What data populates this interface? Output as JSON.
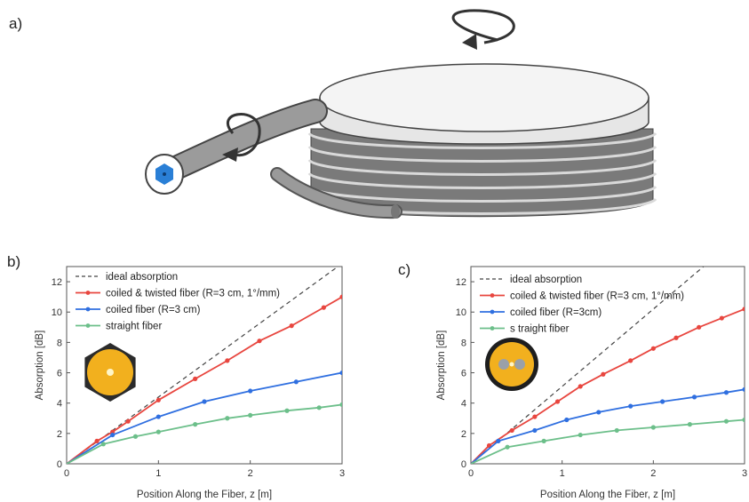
{
  "panels": {
    "a": "a)",
    "b": "b)",
    "c": "c)"
  },
  "colors": {
    "ideal": "#444444",
    "twisted": "#e8463f",
    "coiled": "#2f6fe0",
    "straight": "#6cbf8a",
    "fiber_core": "#2a7fd6",
    "fiber_gray": "#8a8a8a",
    "hex_outer": "#2b2b2b",
    "hex_cladding": "#f2b01e"
  },
  "illustration": {
    "description_icon": "coiled-twisted-fiber-spool"
  },
  "chart_data": [
    {
      "type": "line",
      "xlabel": "Position Along the Fiber, z [m]",
      "ylabel": "Absorption [dB]",
      "xlim": [
        0,
        3
      ],
      "ylim": [
        0,
        13
      ],
      "xticks": [
        "0",
        "1",
        "2",
        "3"
      ],
      "yticks": [
        "0",
        "2",
        "4",
        "6",
        "8",
        "10",
        "12"
      ],
      "legend_position": "top-left",
      "inset_icon": "hexagonal-fiber-icon",
      "series": [
        {
          "name": "ideal absorption",
          "color": "#444444",
          "dashed": true,
          "x": [
            0,
            3
          ],
          "y": [
            0,
            13.2
          ]
        },
        {
          "name": "coiled & twisted fiber (R=3 cm, 1°/mm)",
          "color": "#e8463f",
          "dashed": false,
          "x": [
            0,
            0.33,
            0.5,
            0.67,
            1.0,
            1.4,
            1.75,
            2.1,
            2.45,
            2.8,
            3.0
          ],
          "y": [
            0,
            1.5,
            2.1,
            2.8,
            4.2,
            5.6,
            6.8,
            8.1,
            9.1,
            10.3,
            11.0
          ]
        },
        {
          "name": "coiled fiber (R=3 cm)",
          "color": "#2f6fe0",
          "dashed": false,
          "x": [
            0,
            0.5,
            1.0,
            1.5,
            2.0,
            2.5,
            3.0
          ],
          "y": [
            0,
            1.9,
            3.1,
            4.1,
            4.8,
            5.4,
            6.0
          ]
        },
        {
          "name": "straight fiber",
          "color": "#6cbf8a",
          "dashed": false,
          "x": [
            0,
            0.4,
            0.75,
            1.0,
            1.4,
            1.75,
            2.0,
            2.4,
            2.75,
            3.0
          ],
          "y": [
            0,
            1.3,
            1.8,
            2.1,
            2.6,
            3.0,
            3.2,
            3.5,
            3.7,
            3.9
          ]
        }
      ]
    },
    {
      "type": "line",
      "xlabel": "Position Along the Fiber, z [m]",
      "ylabel": "Absorption [dB]",
      "xlim": [
        0,
        3
      ],
      "ylim": [
        0,
        13
      ],
      "xticks": [
        "0",
        "1",
        "2",
        "3"
      ],
      "yticks": [
        "0",
        "2",
        "4",
        "6",
        "8",
        "10",
        "12"
      ],
      "legend_position": "top-left",
      "inset_icon": "round-dual-core-fiber-icon",
      "series": [
        {
          "name": "ideal absorption",
          "color": "#444444",
          "dashed": true,
          "x": [
            0,
            2.55
          ],
          "y": [
            0,
            13.0
          ]
        },
        {
          "name": "coiled & twisted fiber (R=3 cm, 1°/mm)",
          "color": "#e8463f",
          "dashed": false,
          "x": [
            0,
            0.2,
            0.45,
            0.7,
            0.95,
            1.2,
            1.45,
            1.75,
            2.0,
            2.25,
            2.5,
            2.75,
            3.0
          ],
          "y": [
            0,
            1.2,
            2.2,
            3.1,
            4.1,
            5.1,
            5.9,
            6.8,
            7.6,
            8.3,
            9.0,
            9.6,
            10.2
          ]
        },
        {
          "name": "coiled fiber (R=3cm)",
          "color": "#2f6fe0",
          "dashed": false,
          "x": [
            0,
            0.3,
            0.7,
            1.05,
            1.4,
            1.75,
            2.1,
            2.45,
            2.8,
            3.0
          ],
          "y": [
            0,
            1.5,
            2.2,
            2.9,
            3.4,
            3.8,
            4.1,
            4.4,
            4.7,
            4.9
          ]
        },
        {
          "name": "s traight fiber",
          "color": "#6cbf8a",
          "dashed": false,
          "x": [
            0,
            0.4,
            0.8,
            1.2,
            1.6,
            2.0,
            2.4,
            2.8,
            3.0
          ],
          "y": [
            0,
            1.1,
            1.5,
            1.9,
            2.2,
            2.4,
            2.6,
            2.8,
            2.9
          ]
        }
      ]
    }
  ]
}
